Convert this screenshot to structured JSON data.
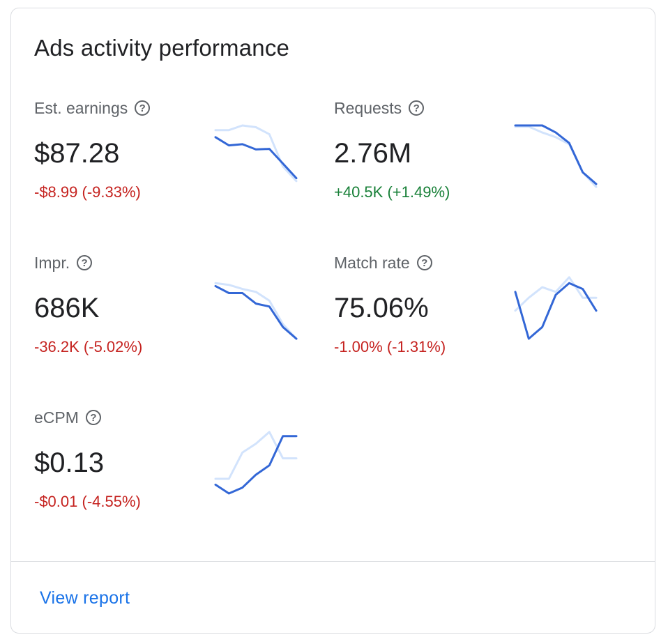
{
  "card": {
    "title": "Ads activity performance"
  },
  "metrics": [
    {
      "label": "Est. earnings",
      "value": "$87.28",
      "change": "-$8.99 (-9.33%)",
      "trend": "negative",
      "sparkline": {
        "current": [
          0.8,
          0.66,
          0.68,
          0.59,
          0.6,
          0.35,
          0.1
        ],
        "previous": [
          0.92,
          0.92,
          1.0,
          0.97,
          0.85,
          0.3,
          0.05
        ]
      }
    },
    {
      "label": "Requests",
      "value": "2.76M",
      "change": "+40.5K (+1.49%)",
      "trend": "positive",
      "sparkline": {
        "current": [
          1.0,
          1.0,
          1.0,
          0.88,
          0.7,
          0.2,
          0.0
        ],
        "previous": [
          0.98,
          0.98,
          0.88,
          0.8,
          0.68,
          0.2,
          -0.05
        ]
      }
    },
    {
      "label": "Impr.",
      "value": "686K",
      "change": "-36.2K (-5.02%)",
      "trend": "negative",
      "sparkline": {
        "current": [
          0.9,
          0.78,
          0.78,
          0.6,
          0.55,
          0.2,
          0.0
        ],
        "previous": [
          0.95,
          0.92,
          0.85,
          0.8,
          0.65,
          0.25,
          0.0
        ]
      }
    },
    {
      "label": "Match rate",
      "value": "75.06%",
      "change": "-1.00% (-1.31%)",
      "trend": "negative",
      "sparkline": {
        "current": [
          0.8,
          0.0,
          0.2,
          0.75,
          0.95,
          0.85,
          0.48
        ],
        "previous": [
          0.48,
          0.7,
          0.88,
          0.8,
          1.05,
          0.7,
          0.7
        ]
      }
    },
    {
      "label": "eCPM",
      "value": "$0.13",
      "change": "-$0.01 (-4.55%)",
      "trend": "negative",
      "sparkline": {
        "current": [
          0.15,
          0.0,
          0.1,
          0.32,
          0.48,
          0.98,
          0.98
        ],
        "previous": [
          0.25,
          0.25,
          0.7,
          0.85,
          1.05,
          0.6,
          0.6
        ]
      }
    }
  ],
  "footer": {
    "view_report_label": "View report"
  },
  "colors": {
    "negative": "#c5221f",
    "positive": "#188038",
    "series_current": "#3367d6",
    "series_previous": "#d2e3fc",
    "link": "#1a73e8"
  },
  "icons": {
    "help": "help-circle-icon"
  }
}
